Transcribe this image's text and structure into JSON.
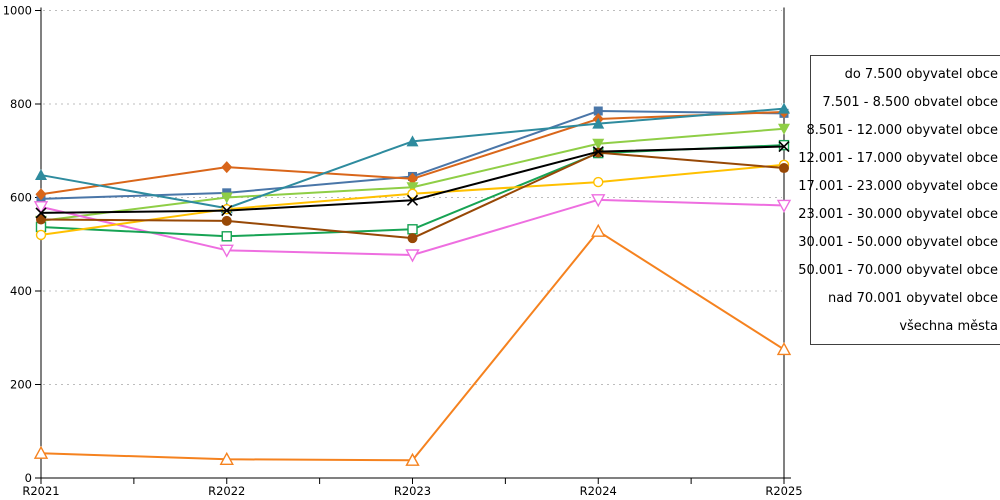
{
  "chart_data": {
    "type": "line",
    "title": "",
    "xlabel": "",
    "ylabel": "",
    "categories": [
      "R2021",
      "R2022",
      "R2023",
      "R2024",
      "R2025"
    ],
    "yticks": [
      0,
      200,
      400,
      600,
      800,
      1000
    ],
    "ylim": [
      0,
      1000
    ],
    "grid": "horizontal-dashed",
    "legend_position": "right-outside",
    "series": [
      {
        "name": "do 7.500 obyvatel obce",
        "color": "#4a76a8",
        "marker": "square-filled",
        "values": [
          597,
          610,
          645,
          785,
          780
        ]
      },
      {
        "name": "7.501 - 8.500 obvatel obce",
        "color": "#d9661a",
        "marker": "diamond-filled",
        "values": [
          607,
          665,
          640,
          768,
          783
        ]
      },
      {
        "name": "8.501 - 12.000 obyvatel obce",
        "color": "#8fce46",
        "marker": "triangle-down-filled",
        "values": [
          550,
          600,
          622,
          715,
          747
        ]
      },
      {
        "name": "12.001 - 17.000 obyvatel obce",
        "color": "#2e8b9e",
        "marker": "triangle-up-filled",
        "values": [
          648,
          577,
          720,
          758,
          790
        ]
      },
      {
        "name": "17.001 - 23.000 obyvatel obce",
        "color": "#ee6ee0",
        "marker": "triangle-down-open",
        "values": [
          580,
          487,
          477,
          595,
          583
        ]
      },
      {
        "name": "23.001 - 30.000 obyvatel obce",
        "color": "#f5821f",
        "marker": "triangle-up-open",
        "values": [
          53,
          40,
          38,
          528,
          275
        ]
      },
      {
        "name": "30.001 - 50.000 obyvatel obce",
        "color": "#17a354",
        "marker": "square-open",
        "values": [
          537,
          517,
          532,
          695,
          712
        ]
      },
      {
        "name": "50.001 - 70.000 obyvatel obce",
        "color": "#ffc000",
        "marker": "circle-open",
        "values": [
          520,
          575,
          608,
          633,
          670
        ]
      },
      {
        "name": "nad 70.001 obyvatel obce",
        "color": "#974806",
        "marker": "circle-filled",
        "values": [
          553,
          550,
          513,
          696,
          663
        ]
      },
      {
        "name": "všechna města",
        "color": "#000000",
        "marker": "x",
        "values": [
          567,
          572,
          594,
          698,
          709
        ]
      }
    ],
    "colors": {
      "gridline": "#bdbdbd",
      "axis": "#000000",
      "legend_border": "#404040"
    }
  }
}
